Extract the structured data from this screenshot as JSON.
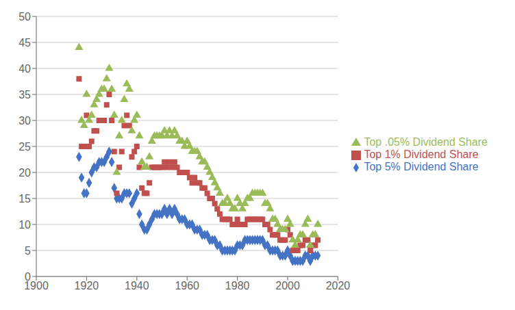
{
  "chart_data": {
    "type": "scatter",
    "x": [
      1917,
      1918,
      1919,
      1920,
      1921,
      1922,
      1923,
      1924,
      1925,
      1926,
      1927,
      1928,
      1929,
      1930,
      1931,
      1932,
      1933,
      1934,
      1935,
      1936,
      1937,
      1938,
      1939,
      1940,
      1941,
      1942,
      1943,
      1944,
      1945,
      1946,
      1947,
      1948,
      1949,
      1950,
      1951,
      1952,
      1953,
      1954,
      1955,
      1956,
      1957,
      1958,
      1959,
      1960,
      1961,
      1962,
      1963,
      1964,
      1965,
      1966,
      1967,
      1968,
      1969,
      1970,
      1971,
      1972,
      1973,
      1974,
      1975,
      1976,
      1977,
      1978,
      1979,
      1980,
      1981,
      1982,
      1983,
      1984,
      1985,
      1986,
      1987,
      1988,
      1989,
      1990,
      1991,
      1992,
      1993,
      1994,
      1995,
      1996,
      1997,
      1998,
      1999,
      2000,
      2001,
      2002,
      2003,
      2004,
      2005,
      2006,
      2007,
      2008,
      2009,
      2010,
      2011,
      2012
    ],
    "series": [
      {
        "name": "Top 5% Dividend Share",
        "color": "#4472C4",
        "marker": "diamond",
        "values": [
          23,
          19,
          16,
          16,
          18,
          20,
          21,
          21,
          22,
          22,
          22,
          23,
          24,
          22,
          17,
          15,
          15,
          15,
          16,
          16,
          16,
          14,
          15,
          16,
          12,
          10,
          9,
          9,
          10,
          11,
          12,
          12,
          12,
          12,
          13,
          12,
          13,
          12,
          13,
          12,
          11,
          11,
          11,
          10,
          10,
          10,
          9,
          9,
          9,
          8,
          8,
          8,
          7,
          7,
          7,
          6,
          6,
          5,
          5,
          5,
          5,
          5,
          5,
          6,
          6,
          6,
          7,
          7,
          7,
          7,
          7,
          7,
          7,
          7,
          6,
          6,
          5,
          5,
          5,
          5,
          4,
          4,
          4,
          5,
          4,
          3,
          3,
          3,
          3,
          3,
          4,
          4,
          3,
          4,
          4,
          4
        ]
      },
      {
        "name": "Top 1% Dividend Share",
        "color": "#C0504D",
        "marker": "square",
        "values": [
          38,
          25,
          25,
          31,
          25,
          26,
          28,
          28,
          30,
          30,
          30,
          33,
          35,
          30,
          24,
          16,
          21,
          24,
          29,
          31,
          29,
          23,
          24,
          25,
          21,
          17,
          16,
          16,
          18,
          21,
          21,
          21,
          21,
          21,
          22,
          21,
          22,
          21,
          22,
          21,
          20,
          20,
          20,
          20,
          19,
          18,
          19,
          18,
          18,
          17,
          17,
          16,
          15,
          15,
          14,
          13,
          12,
          11,
          11,
          11,
          11,
          10,
          10,
          11,
          10,
          10,
          10,
          11,
          11,
          11,
          11,
          11,
          11,
          11,
          10,
          10,
          9,
          8,
          8,
          8,
          7,
          7,
          7,
          9,
          8,
          5,
          5,
          5,
          6,
          6,
          7,
          7,
          5,
          6,
          6,
          7
        ]
      },
      {
        "name": "Top .05% Dividend Share",
        "color": "#9BBB59",
        "marker": "triangle",
        "values": [
          44,
          30,
          29,
          35,
          30,
          31,
          33,
          34,
          35,
          36,
          36,
          38,
          40,
          36,
          31,
          20,
          27,
          30,
          34,
          37,
          36,
          28,
          30,
          31,
          27,
          22,
          21,
          21,
          23,
          26,
          27,
          27,
          27,
          27,
          28,
          27,
          28,
          27,
          28,
          27,
          26,
          26,
          25,
          26,
          25,
          24,
          24,
          24,
          23,
          22,
          22,
          21,
          20,
          19,
          18,
          17,
          16,
          14,
          14,
          15,
          14,
          13,
          13,
          15,
          14,
          13,
          14,
          15,
          15,
          16,
          16,
          16,
          16,
          16,
          14,
          14,
          13,
          11,
          11,
          10,
          9,
          9,
          9,
          11,
          10,
          7,
          6,
          7,
          8,
          8,
          10,
          11,
          6,
          8,
          8,
          10
        ]
      }
    ],
    "xlim": [
      1900,
      2020
    ],
    "xticks": [
      1900,
      1920,
      1940,
      1960,
      1980,
      2000,
      2020
    ],
    "ylim": [
      0,
      50
    ],
    "yticks": [
      0,
      5,
      10,
      15,
      20,
      25,
      30,
      35,
      40,
      45,
      50
    ],
    "grid": true,
    "legend": "right"
  }
}
